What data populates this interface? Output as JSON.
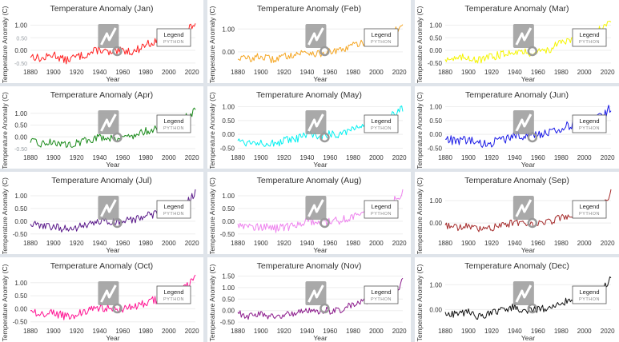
{
  "chart_data": [
    {
      "type": "line",
      "title": "Temperature Anomaly (Jan)",
      "ylabel": "Temperature Anomaly (C)",
      "xlabel": "Year",
      "color": "#ff2020",
      "xlim": [
        1880,
        2023
      ],
      "ylim": [
        -0.6,
        1.3
      ],
      "xticks": [
        1880,
        1900,
        1920,
        1940,
        1960,
        1980,
        2000,
        2020
      ],
      "yticks": [
        {
          "v": 1.0,
          "t": "1.00"
        },
        {
          "v": 0.5,
          "t": "0.50",
          "faint": true
        },
        {
          "v": 0.0,
          "t": "0.00"
        },
        {
          "v": -0.5,
          "t": "-0.50",
          "faint": true
        }
      ],
      "x": [
        1880,
        1890,
        1900,
        1910,
        1920,
        1930,
        1940,
        1950,
        1960,
        1970,
        1980,
        1990,
        2000,
        2010,
        2020,
        2023
      ],
      "y": [
        -0.2,
        -0.35,
        -0.15,
        -0.4,
        -0.25,
        -0.15,
        0.05,
        -0.15,
        0.0,
        -0.05,
        0.25,
        0.35,
        0.45,
        0.6,
        0.95,
        1.1
      ],
      "legend": "Legend"
    },
    {
      "type": "line",
      "title": "Temperature Anomaly (Feb)",
      "ylabel": "Temperature Anomaly (C)",
      "xlabel": "Year",
      "color": "#f5a623",
      "xlim": [
        1880,
        2023
      ],
      "ylim": [
        -0.6,
        1.5
      ],
      "xticks": [
        1880,
        1900,
        1920,
        1940,
        1960,
        1980,
        2000,
        2020
      ],
      "yticks": [
        {
          "v": 1.0,
          "t": "1.00"
        },
        {
          "v": 0.0,
          "t": "0.00"
        }
      ],
      "x": [
        1880,
        1890,
        1900,
        1910,
        1920,
        1930,
        1940,
        1950,
        1960,
        1970,
        1980,
        1990,
        2000,
        2010,
        2020,
        2023
      ],
      "y": [
        -0.25,
        -0.3,
        -0.2,
        -0.35,
        -0.2,
        -0.1,
        0.0,
        -0.1,
        0.0,
        0.05,
        0.3,
        0.4,
        0.5,
        0.7,
        1.05,
        1.25
      ],
      "legend": "Legend"
    },
    {
      "type": "line",
      "title": "Temperature Anomaly (Mar)",
      "ylabel": "Temperature Anomaly (C)",
      "xlabel": "Year",
      "color": "#f5f500",
      "xlim": [
        1880,
        2023
      ],
      "ylim": [
        -0.6,
        1.3
      ],
      "xticks": [
        1880,
        1900,
        1920,
        1940,
        1960,
        1980,
        2000,
        2020
      ],
      "yticks": [
        {
          "v": 1.0,
          "t": "1.00"
        },
        {
          "v": 0.5,
          "t": "0.50"
        },
        {
          "v": 0.0,
          "t": "0.00"
        },
        {
          "v": -0.5,
          "t": "-0.50"
        }
      ],
      "x": [
        1880,
        1890,
        1900,
        1910,
        1920,
        1930,
        1940,
        1950,
        1960,
        1970,
        1980,
        1990,
        2000,
        2010,
        2020,
        2023
      ],
      "y": [
        -0.3,
        -0.35,
        -0.25,
        -0.4,
        -0.25,
        -0.15,
        0.0,
        -0.1,
        -0.05,
        0.05,
        0.3,
        0.4,
        0.55,
        0.7,
        1.05,
        1.2
      ],
      "legend": "Legend"
    },
    {
      "type": "line",
      "title": "Temperature Anomaly (Apr)",
      "ylabel": "Temperature Anomaly (C)",
      "xlabel": "Year",
      "color": "#1a8a1a",
      "xlim": [
        1880,
        2023
      ],
      "ylim": [
        -0.6,
        1.4
      ],
      "xticks": [
        1880,
        1900,
        1920,
        1940,
        1960,
        1980,
        2000,
        2020
      ],
      "yticks": [
        {
          "v": 1.0,
          "t": "1.00"
        },
        {
          "v": 0.5,
          "t": "0.50"
        },
        {
          "v": 0.0,
          "t": "0.00"
        },
        {
          "v": -0.5,
          "t": "-0.50",
          "faint": true
        }
      ],
      "x": [
        1880,
        1890,
        1900,
        1910,
        1920,
        1930,
        1940,
        1950,
        1960,
        1970,
        1980,
        1990,
        2000,
        2010,
        2020,
        2023
      ],
      "y": [
        -0.2,
        -0.3,
        -0.2,
        -0.35,
        -0.25,
        -0.15,
        0.0,
        -0.05,
        0.0,
        0.05,
        0.25,
        0.35,
        0.5,
        0.7,
        1.0,
        1.25
      ],
      "legend": "Legend"
    },
    {
      "type": "line",
      "title": "Temperature Anomaly (May)",
      "ylabel": "Temperature Anomaly (C)",
      "xlabel": "Year",
      "color": "#00f0f0",
      "xlim": [
        1880,
        2023
      ],
      "ylim": [
        -0.6,
        1.1
      ],
      "xticks": [
        1880,
        1900,
        1920,
        1940,
        1960,
        1980,
        2000,
        2020
      ],
      "yticks": [
        {
          "v": 1.0,
          "t": "1.00"
        },
        {
          "v": 0.5,
          "t": "0.50"
        },
        {
          "v": 0.0,
          "t": "0.00"
        },
        {
          "v": -0.5,
          "t": "-0.50"
        }
      ],
      "x": [
        1880,
        1890,
        1900,
        1910,
        1920,
        1930,
        1940,
        1950,
        1960,
        1970,
        1980,
        1990,
        2000,
        2010,
        2020,
        2023
      ],
      "y": [
        -0.2,
        -0.3,
        -0.25,
        -0.35,
        -0.25,
        -0.2,
        0.0,
        -0.05,
        0.0,
        0.05,
        0.25,
        0.35,
        0.45,
        0.6,
        0.85,
        0.95
      ],
      "legend": "Legend"
    },
    {
      "type": "line",
      "title": "Temperature Anomaly (Jun)",
      "ylabel": "Temperature Anomaly (C)",
      "xlabel": "Year",
      "color": "#1a1ae6",
      "xlim": [
        1880,
        2023
      ],
      "ylim": [
        -0.6,
        1.1
      ],
      "xticks": [
        1880,
        1900,
        1920,
        1940,
        1960,
        1980,
        2000,
        2020
      ],
      "yticks": [
        {
          "v": 1.0,
          "t": "1.00"
        },
        {
          "v": 0.5,
          "t": "0.50"
        },
        {
          "v": 0.0,
          "t": "0.00"
        },
        {
          "v": -0.5,
          "t": "-0.50"
        }
      ],
      "x": [
        1880,
        1890,
        1900,
        1910,
        1920,
        1930,
        1940,
        1950,
        1960,
        1970,
        1980,
        1990,
        2000,
        2010,
        2020,
        2023
      ],
      "y": [
        -0.15,
        -0.25,
        -0.2,
        -0.35,
        -0.3,
        -0.2,
        0.0,
        -0.05,
        0.0,
        0.05,
        0.25,
        0.35,
        0.45,
        0.6,
        0.85,
        1.0
      ],
      "legend": "Legend"
    },
    {
      "type": "line",
      "title": "Temperature Anomaly (Jul)",
      "ylabel": "Temperature Anomaly (C)",
      "xlabel": "Year",
      "color": "#5a1a8a",
      "xlim": [
        1880,
        2023
      ],
      "ylim": [
        -0.6,
        1.25
      ],
      "xticks": [
        1880,
        1900,
        1920,
        1940,
        1960,
        1980,
        2000,
        2020
      ],
      "yticks": [
        {
          "v": 1.0,
          "t": "1.00"
        },
        {
          "v": 0.5,
          "t": "0.50"
        },
        {
          "v": 0.0,
          "t": "0.00"
        },
        {
          "v": -0.5,
          "t": "-0.50"
        }
      ],
      "x": [
        1880,
        1890,
        1900,
        1910,
        1920,
        1930,
        1940,
        1950,
        1960,
        1970,
        1980,
        1990,
        2000,
        2010,
        2020,
        2023
      ],
      "y": [
        -0.1,
        -0.2,
        -0.2,
        -0.3,
        -0.25,
        -0.15,
        0.0,
        -0.05,
        0.0,
        0.05,
        0.2,
        0.3,
        0.45,
        0.65,
        0.95,
        1.15
      ],
      "legend": "Legend"
    },
    {
      "type": "line",
      "title": "Temperature Anomaly (Aug)",
      "ylabel": "Temperature Anomaly (C)",
      "xlabel": "Year",
      "color": "#ee82ee",
      "xlim": [
        1880,
        2023
      ],
      "ylim": [
        -0.6,
        1.25
      ],
      "xticks": [
        1880,
        1900,
        1920,
        1940,
        1960,
        1980,
        2000,
        2020
      ],
      "yticks": [
        {
          "v": 1.0,
          "t": "1.00"
        },
        {
          "v": 0.5,
          "t": "0.50"
        },
        {
          "v": 0.0,
          "t": "0.00"
        },
        {
          "v": -0.5,
          "t": "-0.50"
        }
      ],
      "x": [
        1880,
        1890,
        1900,
        1910,
        1920,
        1930,
        1940,
        1950,
        1960,
        1970,
        1980,
        1990,
        2000,
        2010,
        2020,
        2023
      ],
      "y": [
        -0.1,
        -0.2,
        -0.2,
        -0.3,
        -0.25,
        -0.15,
        0.0,
        -0.05,
        0.0,
        0.05,
        0.2,
        0.35,
        0.45,
        0.65,
        0.95,
        1.15
      ],
      "legend": "Legend"
    },
    {
      "type": "line",
      "title": "Temperature Anomaly (Sep)",
      "ylabel": "Temperature Anomaly (C)",
      "xlabel": "Year",
      "color": "#a52a2a",
      "xlim": [
        1880,
        2023
      ],
      "ylim": [
        -0.6,
        1.5
      ],
      "xticks": [
        1880,
        1900,
        1920,
        1940,
        1960,
        1980,
        2000,
        2020
      ],
      "yticks": [
        {
          "v": 1.0,
          "t": "1.00"
        },
        {
          "v": 0.0,
          "t": "0.00"
        }
      ],
      "x": [
        1880,
        1890,
        1900,
        1910,
        1920,
        1930,
        1940,
        1950,
        1960,
        1970,
        1980,
        1990,
        2000,
        2010,
        2020,
        2023
      ],
      "y": [
        -0.1,
        -0.2,
        -0.15,
        -0.3,
        -0.2,
        -0.1,
        0.05,
        0.0,
        0.0,
        0.05,
        0.25,
        0.35,
        0.5,
        0.65,
        1.0,
        1.4
      ],
      "legend": "Legend"
    },
    {
      "type": "line",
      "title": "Temperature Anomaly (Oct)",
      "ylabel": "Temperature Anomaly (C)",
      "xlabel": "Year",
      "color": "#ff1493",
      "xlim": [
        1880,
        2023
      ],
      "ylim": [
        -0.6,
        1.3
      ],
      "xticks": [
        1880,
        1900,
        1920,
        1940,
        1960,
        1980,
        2000,
        2020
      ],
      "yticks": [
        {
          "v": 1.0,
          "t": "1.00"
        },
        {
          "v": 0.5,
          "t": "0.50"
        },
        {
          "v": 0.0,
          "t": "0.00"
        },
        {
          "v": -0.5,
          "t": "-0.50"
        }
      ],
      "x": [
        1880,
        1890,
        1900,
        1910,
        1920,
        1930,
        1940,
        1950,
        1960,
        1970,
        1980,
        1990,
        2000,
        2010,
        2020,
        2023
      ],
      "y": [
        -0.1,
        -0.2,
        -0.15,
        -0.3,
        -0.2,
        -0.1,
        0.05,
        0.0,
        0.0,
        0.05,
        0.25,
        0.35,
        0.5,
        0.7,
        1.05,
        1.25
      ],
      "legend": "Legend"
    },
    {
      "type": "line",
      "title": "Temperature Anomaly (Nov)",
      "ylabel": "Temperature Anomaly (C)",
      "xlabel": "Year",
      "color": "#8b1a8b",
      "xlim": [
        1880,
        2023
      ],
      "ylim": [
        -0.6,
        1.55
      ],
      "xticks": [
        1880,
        1900,
        1920,
        1940,
        1960,
        1980,
        2000,
        2020
      ],
      "yticks": [
        {
          "v": 1.5,
          "t": "1.50"
        },
        {
          "v": 1.0,
          "t": "1.00"
        },
        {
          "v": 0.5,
          "t": "0.50"
        },
        {
          "v": 0.0,
          "t": "0.00"
        },
        {
          "v": -0.5,
          "t": "-0.50"
        }
      ],
      "x": [
        1880,
        1890,
        1900,
        1910,
        1920,
        1930,
        1940,
        1950,
        1960,
        1970,
        1980,
        1990,
        2000,
        2010,
        2020,
        2023
      ],
      "y": [
        -0.1,
        -0.25,
        -0.15,
        -0.3,
        -0.2,
        -0.1,
        0.05,
        0.0,
        0.0,
        0.05,
        0.25,
        0.4,
        0.5,
        0.7,
        1.05,
        1.35
      ],
      "legend": "Legend"
    },
    {
      "type": "line",
      "title": "Temperature Anomaly (Dec)",
      "ylabel": "Temperature Anomaly (C)",
      "xlabel": "Year",
      "color": "#111111",
      "xlim": [
        1880,
        2023
      ],
      "ylim": [
        -0.6,
        1.4
      ],
      "xticks": [
        1880,
        1900,
        1920,
        1940,
        1960,
        1980,
        2000,
        2020
      ],
      "yticks": [
        {
          "v": 1.0,
          "t": "1.00"
        },
        {
          "v": 0.0,
          "t": "0.00"
        }
      ],
      "x": [
        1880,
        1890,
        1900,
        1910,
        1920,
        1930,
        1940,
        1950,
        1960,
        1970,
        1980,
        1990,
        2000,
        2010,
        2020,
        2023
      ],
      "y": [
        -0.15,
        -0.2,
        -0.1,
        -0.3,
        -0.15,
        -0.05,
        0.1,
        -0.05,
        0.0,
        0.05,
        0.3,
        0.4,
        0.5,
        0.7,
        1.0,
        1.25
      ],
      "legend": "Legend"
    }
  ],
  "watermark": {
    "text": "LightningChart",
    "sub": "PYTHON",
    "icon": "lightningchart-logo-icon"
  }
}
